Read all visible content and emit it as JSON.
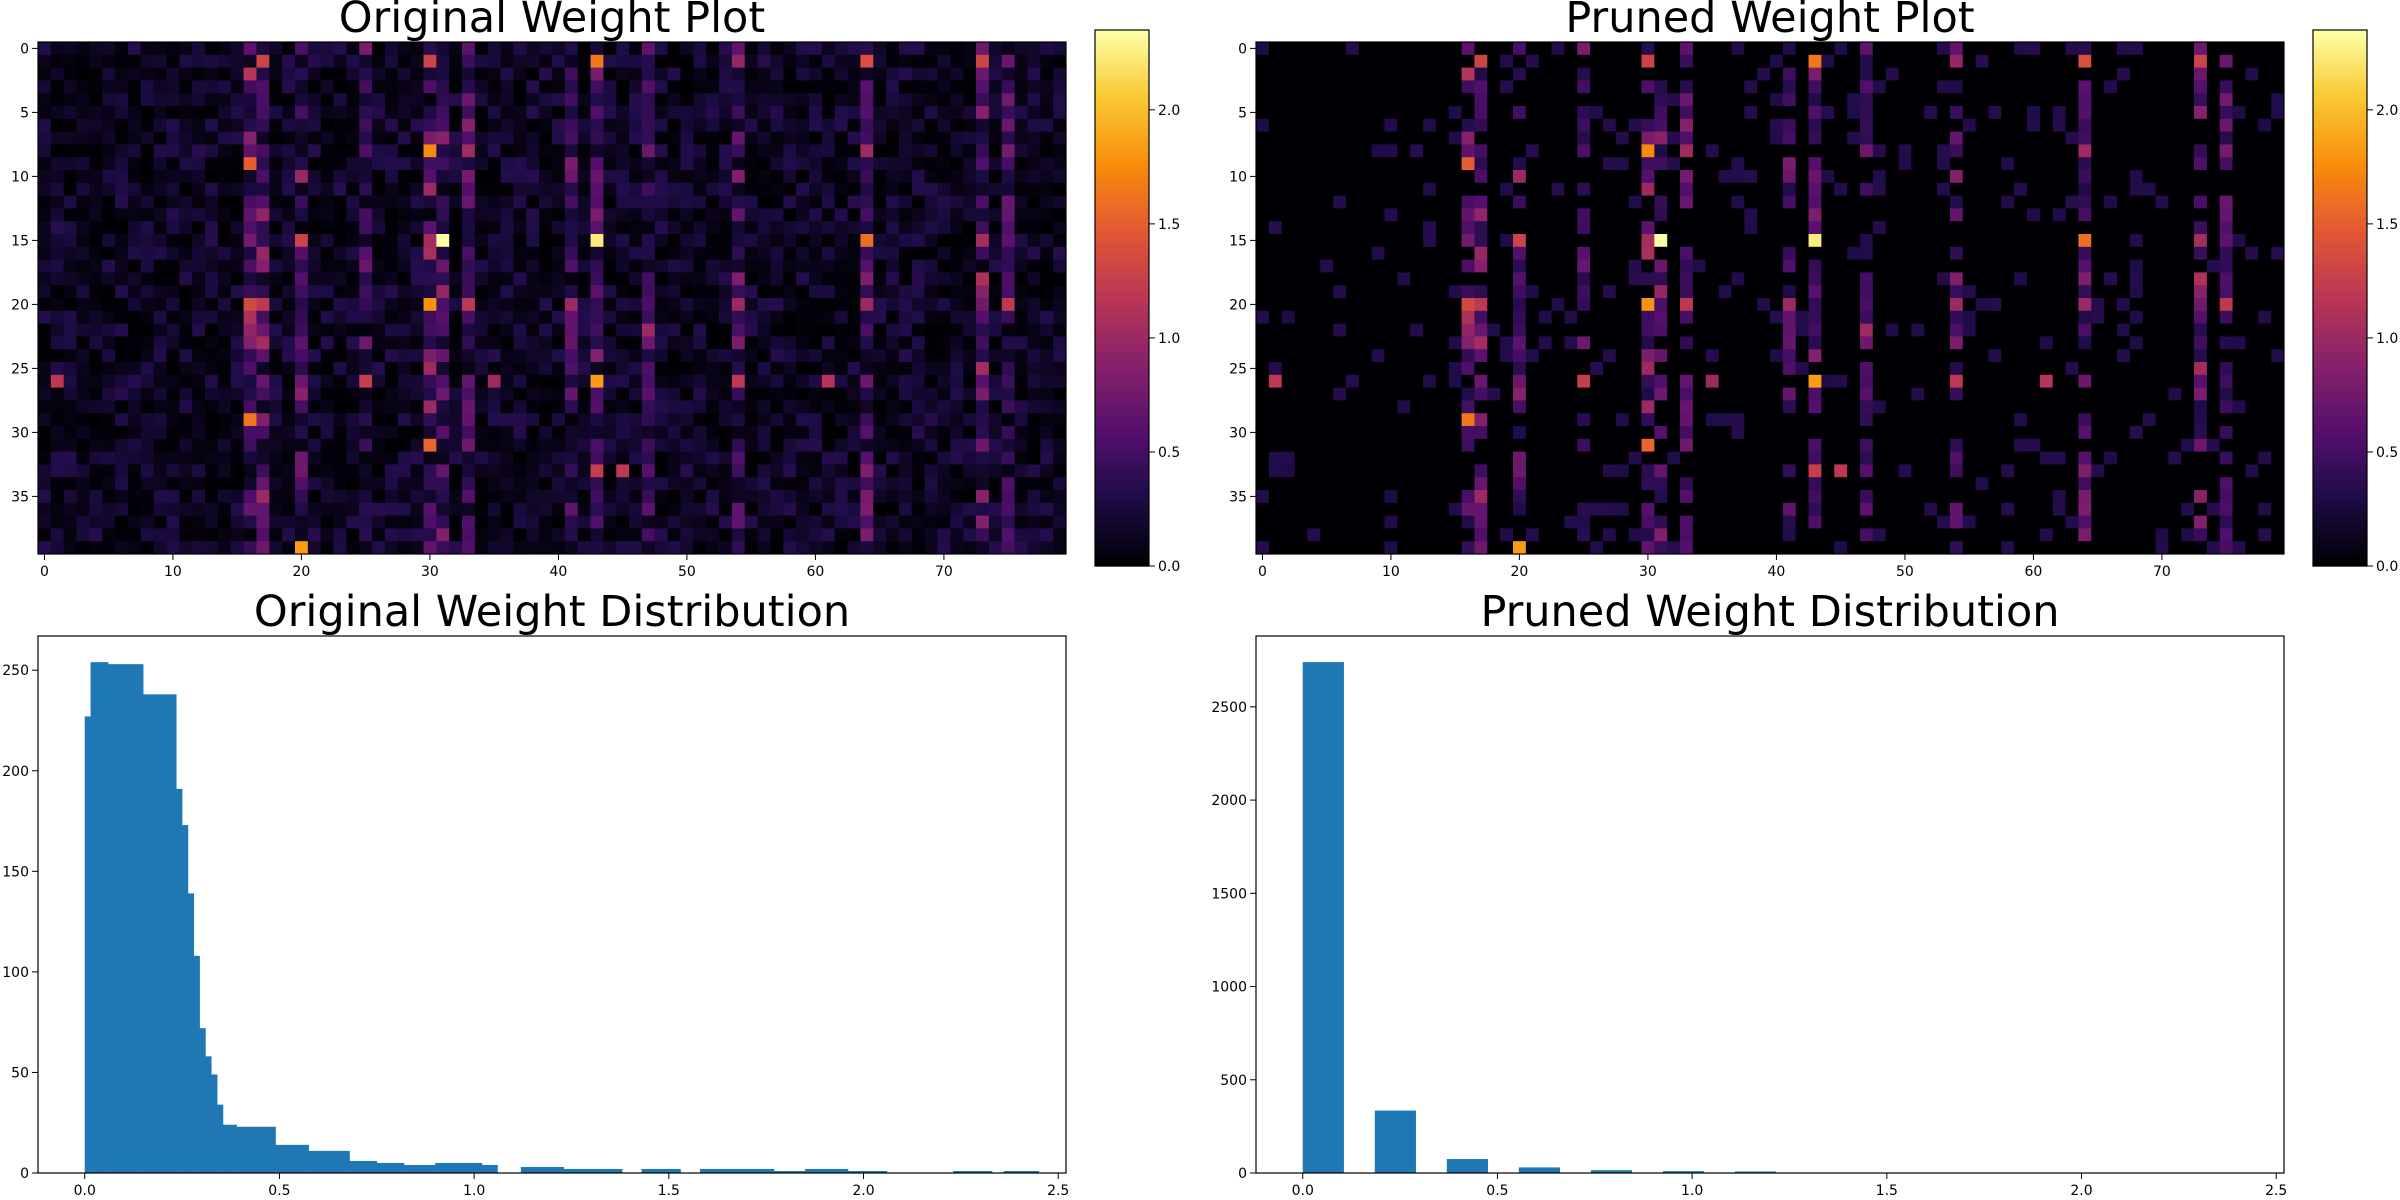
{
  "chart_data": [
    {
      "type": "heatmap",
      "title": "Original Weight Plot",
      "rows": 40,
      "cols": 80,
      "colormap": "inferno",
      "value_range": [
        0,
        2.35
      ],
      "xticks": [
        0,
        10,
        20,
        30,
        40,
        50,
        60,
        70
      ],
      "yticks": [
        0,
        5,
        10,
        15,
        20,
        25,
        30,
        35
      ],
      "colorbar_ticks": [
        "0.0",
        "0.5",
        "1.0",
        "1.5",
        "2.0"
      ],
      "colorbar_tick_values": [
        0,
        0.5,
        1.0,
        1.5,
        2.0
      ],
      "background_level": 0.15,
      "noise_amplitude": 0.35,
      "hot_cells": [
        {
          "row": 15,
          "col": 31,
          "value": 2.35
        },
        {
          "row": 15,
          "col": 43,
          "value": 2.25
        },
        {
          "row": 39,
          "col": 20,
          "value": 1.85
        },
        {
          "row": 26,
          "col": 43,
          "value": 1.85
        },
        {
          "row": 20,
          "col": 30,
          "value": 1.8
        },
        {
          "row": 8,
          "col": 30,
          "value": 1.75
        },
        {
          "row": 29,
          "col": 16,
          "value": 1.65
        },
        {
          "row": 1,
          "col": 43,
          "value": 1.65
        },
        {
          "row": 15,
          "col": 64,
          "value": 1.6
        },
        {
          "row": 31,
          "col": 30,
          "value": 1.55
        },
        {
          "row": 9,
          "col": 16,
          "value": 1.5
        },
        {
          "row": 1,
          "col": 64,
          "value": 1.4
        },
        {
          "row": 20,
          "col": 16,
          "value": 1.35
        },
        {
          "row": 1,
          "col": 17,
          "value": 1.3
        },
        {
          "row": 1,
          "col": 30,
          "value": 1.3
        },
        {
          "row": 15,
          "col": 20,
          "value": 1.3
        },
        {
          "row": 1,
          "col": 73,
          "value": 1.3
        },
        {
          "row": 26,
          "col": 25,
          "value": 1.25
        },
        {
          "row": 33,
          "col": 43,
          "value": 1.25
        },
        {
          "row": 33,
          "col": 45,
          "value": 1.2
        },
        {
          "row": 20,
          "col": 17,
          "value": 1.2
        },
        {
          "row": 26,
          "col": 1,
          "value": 1.2
        },
        {
          "row": 2,
          "col": 16,
          "value": 1.15
        },
        {
          "row": 20,
          "col": 33,
          "value": 1.2
        },
        {
          "row": 20,
          "col": 75,
          "value": 1.2
        },
        {
          "row": 26,
          "col": 54,
          "value": 1.2
        },
        {
          "row": 26,
          "col": 61,
          "value": 1.15
        },
        {
          "row": 18,
          "col": 73,
          "value": 1.1
        },
        {
          "row": 15,
          "col": 73,
          "value": 1.05
        },
        {
          "row": 20,
          "col": 64,
          "value": 1.0
        },
        {
          "row": 20,
          "col": 54,
          "value": 1.0
        },
        {
          "row": 20,
          "col": 41,
          "value": 1.0
        },
        {
          "row": 25,
          "col": 30,
          "value": 1.0
        },
        {
          "row": 28,
          "col": 30,
          "value": 1.0
        },
        {
          "row": 11,
          "col": 30,
          "value": 1.0
        },
        {
          "row": 35,
          "col": 17,
          "value": 1.0
        },
        {
          "row": 26,
          "col": 35,
          "value": 1.0
        },
        {
          "row": 1,
          "col": 54,
          "value": 0.95
        }
      ],
      "hot_columns": [
        {
          "col": 16,
          "level": 0.55
        },
        {
          "col": 17,
          "level": 0.5
        },
        {
          "col": 30,
          "level": 0.55
        },
        {
          "col": 31,
          "level": 0.45
        },
        {
          "col": 43,
          "level": 0.5
        },
        {
          "col": 47,
          "level": 0.5
        },
        {
          "col": 64,
          "level": 0.55
        },
        {
          "col": 73,
          "level": 0.5
        },
        {
          "col": 75,
          "level": 0.45
        },
        {
          "col": 54,
          "level": 0.4
        },
        {
          "col": 20,
          "level": 0.4
        },
        {
          "col": 25,
          "level": 0.35
        },
        {
          "col": 33,
          "level": 0.4
        },
        {
          "col": 41,
          "level": 0.35
        }
      ]
    },
    {
      "type": "heatmap",
      "title": "Pruned Weight Plot",
      "rows": 40,
      "cols": 80,
      "colormap": "inferno",
      "value_range": [
        0,
        2.35
      ],
      "xticks": [
        0,
        10,
        20,
        30,
        40,
        50,
        60,
        70
      ],
      "yticks": [
        0,
        5,
        10,
        15,
        20,
        25,
        30,
        35
      ],
      "colorbar_ticks": [
        "0.0",
        "0.5",
        "1.0",
        "1.5",
        "2.0"
      ],
      "colorbar_tick_values": [
        0,
        0.5,
        1.0,
        1.5,
        2.0
      ],
      "derived_from": 0,
      "pruning_threshold": 0.3
    },
    {
      "type": "bar",
      "subtype": "histogram",
      "title": "Original Weight Distribution",
      "x": [
        0.0,
        0.015,
        0.06,
        0.15,
        0.235,
        0.25,
        0.265,
        0.28,
        0.295,
        0.31,
        0.325,
        0.34,
        0.355,
        0.39,
        0.49,
        0.575,
        0.68,
        0.75,
        0.82,
        0.9,
        1.02,
        1.12,
        1.23,
        1.43,
        1.58,
        1.68,
        1.77,
        1.85,
        1.96,
        2.23,
        2.36
      ],
      "x_end": [
        0.015,
        0.06,
        0.15,
        0.235,
        0.25,
        0.265,
        0.28,
        0.295,
        0.31,
        0.325,
        0.34,
        0.355,
        0.39,
        0.49,
        0.575,
        0.68,
        0.75,
        0.82,
        0.9,
        1.02,
        1.06,
        1.23,
        1.38,
        1.53,
        1.68,
        1.77,
        1.85,
        1.96,
        2.06,
        2.33,
        2.45
      ],
      "values": [
        227,
        254,
        253,
        238,
        191,
        173,
        139,
        108,
        72,
        58,
        49,
        34,
        24,
        23,
        14,
        11,
        6,
        5,
        4,
        5,
        4,
        3,
        2,
        2,
        2,
        2,
        1,
        2,
        1,
        1,
        1
      ],
      "xticks": [
        0.0,
        0.5,
        1.0,
        1.5,
        2.0,
        2.5
      ],
      "xtick_labels": [
        "0.0",
        "0.5",
        "1.0",
        "1.5",
        "2.0",
        "2.5"
      ],
      "yticks": [
        0,
        50,
        100,
        150,
        200,
        250
      ],
      "xlim": [
        -0.12,
        2.52
      ],
      "ylim": [
        0,
        267
      ],
      "color": "#1f77b4"
    },
    {
      "type": "bar",
      "subtype": "histogram",
      "title": "Pruned Weight Distribution",
      "x": [
        0.0,
        0.185,
        0.37,
        0.555,
        0.74,
        0.925,
        1.11
      ],
      "x_end": [
        0.105,
        0.29,
        0.475,
        0.66,
        0.845,
        1.03,
        1.215
      ],
      "values": [
        2740,
        335,
        75,
        30,
        15,
        10,
        8
      ],
      "xticks": [
        0.0,
        0.5,
        1.0,
        1.5,
        2.0,
        2.5
      ],
      "xtick_labels": [
        "0.0",
        "0.5",
        "1.0",
        "1.5",
        "2.0",
        "2.5"
      ],
      "yticks": [
        0,
        500,
        1000,
        1500,
        2000,
        2500
      ],
      "xlim": [
        -0.12,
        2.52
      ],
      "ylim": [
        0,
        2880
      ],
      "color": "#1f77b4"
    }
  ]
}
